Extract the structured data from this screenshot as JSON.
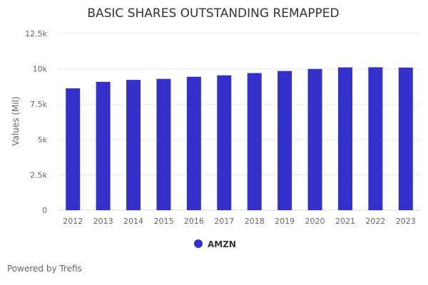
{
  "credit": "Powered by Trefis",
  "chart_data": {
    "type": "bar",
    "title": "BASIC SHARES OUTSTANDING REMAPPED",
    "xlabel": "",
    "ylabel": "Values (Mil)",
    "ylim": [
      0,
      12500
    ],
    "yticks": [
      0,
      2500,
      5000,
      7500,
      10000,
      12500
    ],
    "ytick_labels": [
      "0",
      "2.5k",
      "5k",
      "7.5k",
      "10k",
      "12.5k"
    ],
    "categories": [
      "2012",
      "2013",
      "2014",
      "2015",
      "2016",
      "2017",
      "2018",
      "2019",
      "2020",
      "2021",
      "2022",
      "2023"
    ],
    "series": [
      {
        "name": "AMZN",
        "color": "#3330cc",
        "values": [
          8620,
          9080,
          9220,
          9290,
          9440,
          9540,
          9700,
          9850,
          9990,
          10100,
          10110,
          10090
        ]
      }
    ],
    "grid": true,
    "legend": "bottom-center"
  }
}
